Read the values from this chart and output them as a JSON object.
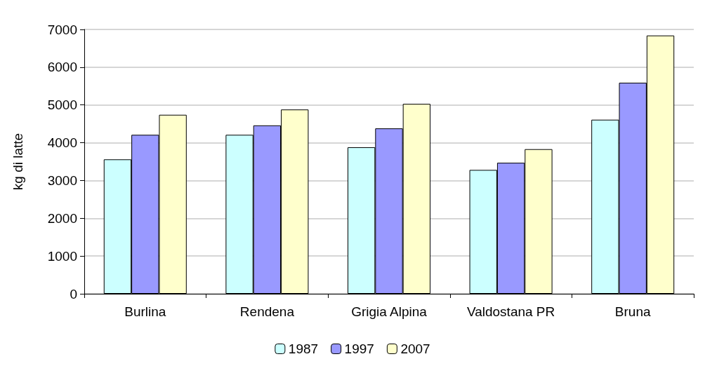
{
  "chart_data": {
    "type": "bar",
    "ylabel": "kg di latte",
    "categories": [
      "Burlina",
      "Rendena",
      "Grigia Alpina",
      "Valdostana PR",
      "Bruna"
    ],
    "series": [
      {
        "name": "1987",
        "color": "#ccffff",
        "values": [
          3560,
          4210,
          3880,
          3280,
          4610
        ]
      },
      {
        "name": "1997",
        "color": "#9999ff",
        "values": [
          4210,
          4460,
          4380,
          3470,
          5590
        ]
      },
      {
        "name": "2007",
        "color": "#ffffcc",
        "values": [
          4740,
          4880,
          5030,
          3830,
          6840
        ]
      }
    ],
    "ylim": [
      0,
      7000
    ],
    "yticks": [
      0,
      1000,
      2000,
      3000,
      4000,
      5000,
      6000,
      7000
    ],
    "grid": "y",
    "legend": "bottom"
  }
}
